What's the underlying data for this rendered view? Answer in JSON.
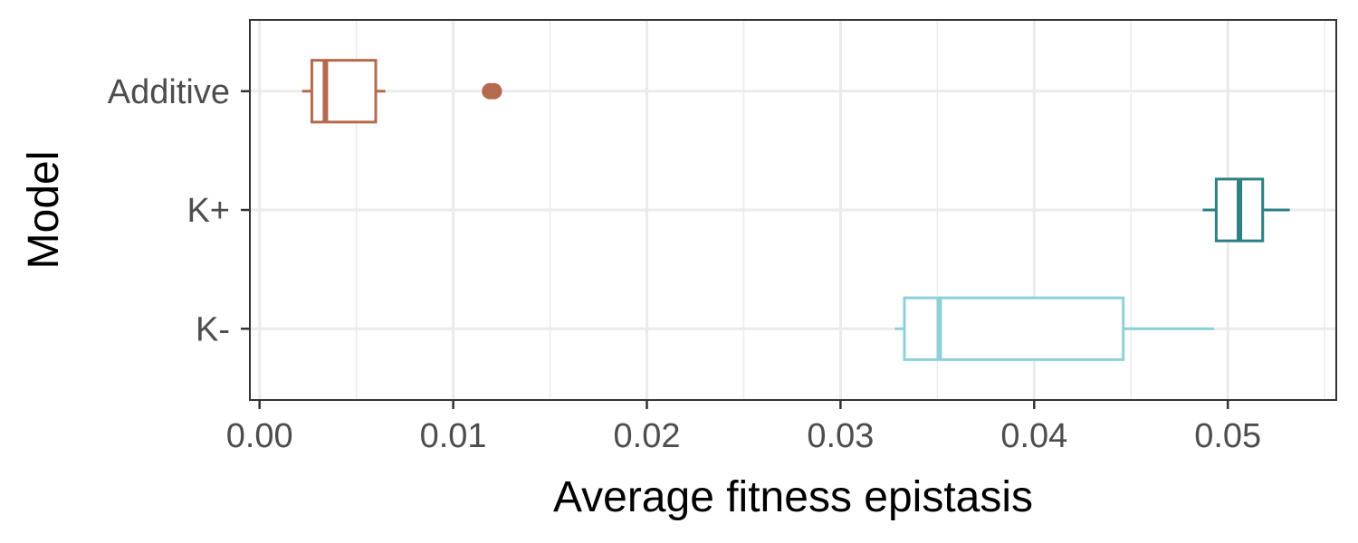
{
  "chart_data": {
    "type": "boxplot",
    "orientation": "horizontal",
    "xlabel": "Average fitness epistasis",
    "ylabel": "Model",
    "xlim": [
      -0.0005,
      0.0556
    ],
    "x_ticks": [
      0.0,
      0.01,
      0.02,
      0.03,
      0.04,
      0.05
    ],
    "x_tick_labels": [
      "0.00",
      "0.01",
      "0.02",
      "0.03",
      "0.04",
      "0.05"
    ],
    "grid": true,
    "categories": [
      "Additive",
      "K+",
      "K-"
    ],
    "series": [
      {
        "category": "Additive",
        "whisker_low": 0.0022,
        "q1": 0.0027,
        "median": 0.0034,
        "q3": 0.006,
        "whisker_high": 0.0065,
        "outliers": [
          0.0119,
          0.0121
        ],
        "color": "#b5694f"
      },
      {
        "category": "K+",
        "whisker_low": 0.0487,
        "q1": 0.0494,
        "median": 0.0506,
        "q3": 0.0518,
        "whisker_high": 0.0532,
        "outliers": [],
        "color": "#2e7f83"
      },
      {
        "category": "K-",
        "whisker_low": 0.0328,
        "q1": 0.0333,
        "median": 0.0351,
        "q3": 0.0446,
        "whisker_high": 0.0493,
        "outliers": [],
        "color": "#8ed0d9"
      }
    ]
  }
}
